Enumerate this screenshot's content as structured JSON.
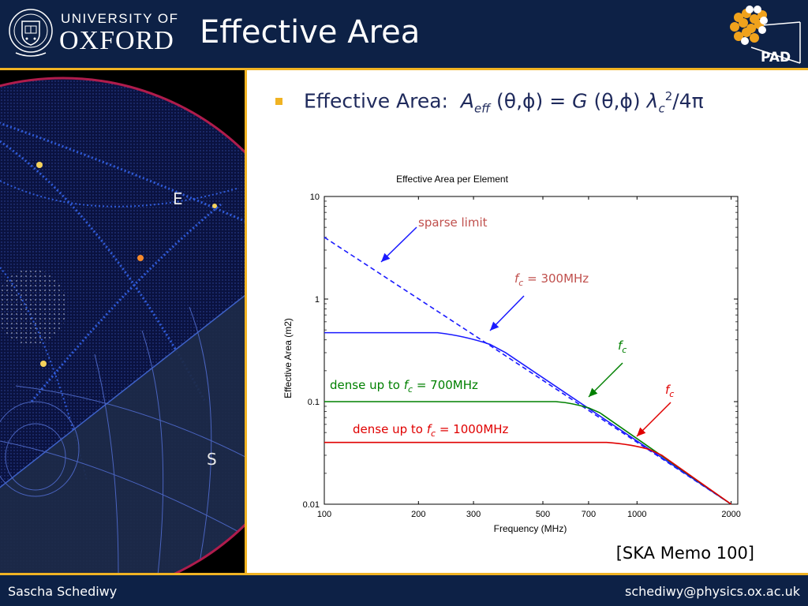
{
  "header": {
    "university_line1": "UNIVERSITY OF",
    "university_line2": "OXFORD",
    "title": "Effective Area",
    "pad_logo_text": "PAD"
  },
  "sky_panel": {
    "label_e": "E",
    "label_s": "S"
  },
  "bullet": {
    "prefix": "Effective Area:",
    "a": "A",
    "eff": "eff",
    "angles1": "(θ,ϕ) =",
    "g": "G",
    "angles2": "(θ,ϕ)",
    "lambda": "λ",
    "c": "c",
    "sq": "2",
    "tail": "/4π"
  },
  "chart_data": {
    "type": "line",
    "title": "Effective Area per Element",
    "xlabel": "Frequency (MHz)",
    "ylabel": "Effective Area (m2)",
    "xscale": "log",
    "yscale": "log",
    "xlim": [
      100,
      2100
    ],
    "ylim": [
      0.01,
      10
    ],
    "xticks": [
      100,
      200,
      300,
      500,
      700,
      1000,
      2000
    ],
    "xtick_labels": [
      "100",
      "200",
      "300",
      "500",
      "700",
      "1000",
      "2000"
    ],
    "yticks": [
      0.01,
      0.1,
      1,
      10
    ],
    "ytick_labels": [
      "0.01",
      "0.1",
      "1",
      "10"
    ],
    "series": [
      {
        "style": "dashed",
        "color": "#1a1aff",
        "x": [
          100,
          350,
          2000
        ],
        "y": [
          4.0,
          0.33,
          0.01
        ]
      },
      {
        "style": "solid",
        "color": "#1a1aff",
        "x": [
          100,
          230,
          260,
          300,
          340,
          380,
          2000
        ],
        "y": [
          0.47,
          0.47,
          0.45,
          0.41,
          0.36,
          0.3,
          0.01
        ]
      },
      {
        "style": "solid",
        "color": "#008000",
        "x": [
          100,
          550,
          600,
          650,
          700,
          760,
          2000
        ],
        "y": [
          0.1,
          0.1,
          0.098,
          0.093,
          0.087,
          0.078,
          0.01
        ]
      },
      {
        "style": "solid",
        "color": "#e00000",
        "x": [
          100,
          800,
          900,
          1000,
          1100,
          1200,
          2000
        ],
        "y": [
          0.04,
          0.04,
          0.039,
          0.037,
          0.034,
          0.03,
          0.01
        ]
      }
    ],
    "annotations": [
      {
        "text": "sparse limit",
        "color": "#c0504d"
      },
      {
        "text_italic": "f",
        "sub": "c",
        "text": " = 300MHz",
        "color": "#c0504d"
      },
      {
        "text_italic": "f",
        "sub": "c",
        "text": "",
        "color": "#008000"
      },
      {
        "text_italic": "f",
        "sub": "c",
        "text": "",
        "color": "#e00000"
      },
      {
        "text": "dense up to ",
        "text_italic": "f",
        "sub": "c",
        "text2": " = 700MHz",
        "color": "#008000"
      },
      {
        "text": "dense up to ",
        "text_italic": "f",
        "sub": "c",
        "text2": " = 1000MHz",
        "color": "#e00000"
      }
    ]
  },
  "reference": "[SKA Memo 100]",
  "footer": {
    "author": "Sascha Schediwy",
    "email": "schediwy@physics.ox.ac.uk"
  }
}
